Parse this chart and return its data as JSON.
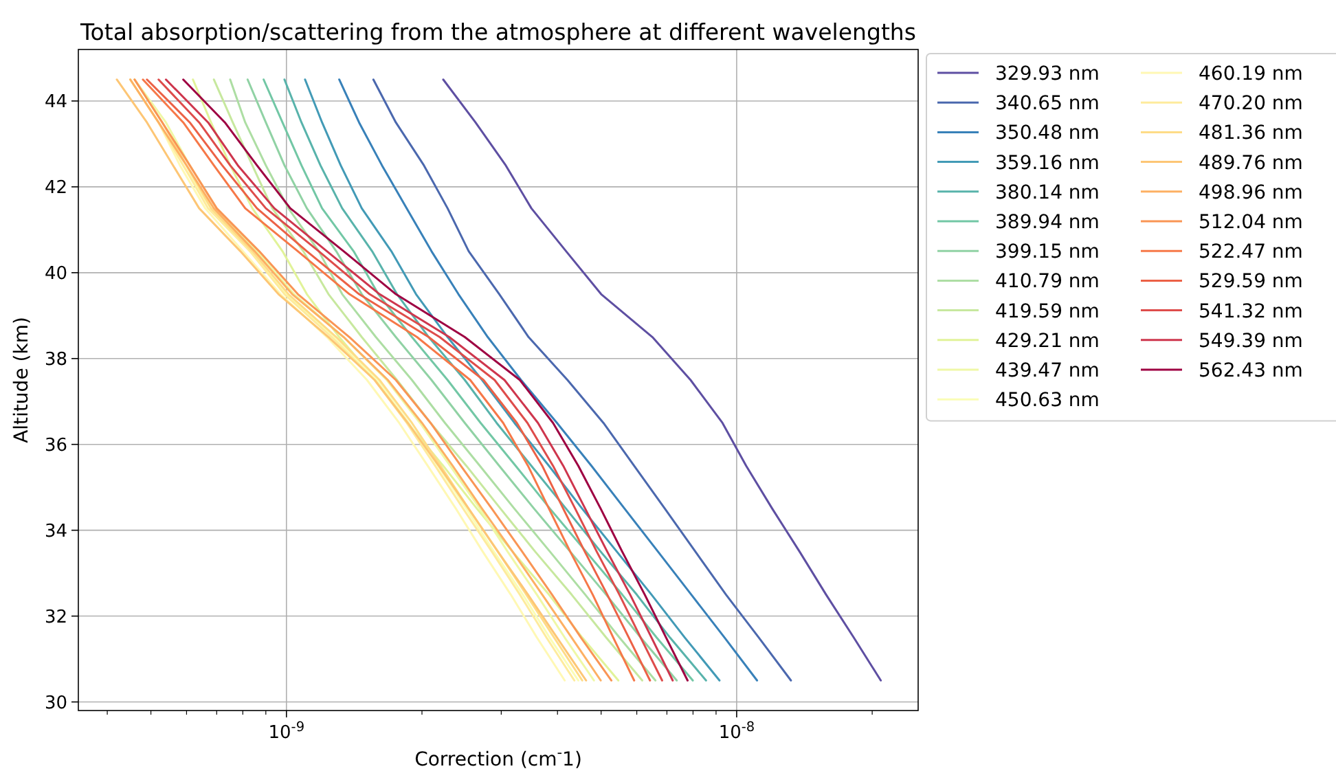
{
  "chart_data": {
    "type": "line",
    "title": "Total absorption/scattering from the atmosphere at different wavelengths",
    "xlabel": "Correction (cm$^{-}$1)",
    "ylabel": "Altitude (km)",
    "log": "x",
    "grid": true,
    "legend": "right",
    "line_style": "solid",
    "xlim": [
      3.45e-10,
      2.53e-08
    ],
    "ylim": [
      29.8,
      45.2
    ],
    "xticks": [
      {
        "value": 4e-10,
        "label": null
      },
      {
        "value": 5e-10,
        "label": null
      },
      {
        "value": 6e-10,
        "label": null
      },
      {
        "value": 7e-10,
        "label": null
      },
      {
        "value": 8e-10,
        "label": null
      },
      {
        "value": 9e-10,
        "label": null
      },
      {
        "value": 1e-09,
        "label": "10$^{-9}$"
      },
      {
        "value": 2e-09,
        "label": null
      },
      {
        "value": 3e-09,
        "label": null
      },
      {
        "value": 4e-09,
        "label": null
      },
      {
        "value": 5e-09,
        "label": null
      },
      {
        "value": 6e-09,
        "label": null
      },
      {
        "value": 7e-09,
        "label": null
      },
      {
        "value": 8e-09,
        "label": null
      },
      {
        "value": 9e-09,
        "label": null
      },
      {
        "value": 1e-08,
        "label": "10$^{-8}$"
      },
      {
        "value": 2e-08,
        "label": null
      }
    ],
    "yticks": [
      30,
      32,
      34,
      36,
      38,
      40,
      42,
      44
    ],
    "series": [
      {
        "name": "329.93 nm",
        "color": "#5e4fa2",
        "x": [
          2.23e-09,
          2.63e-09,
          3.07e-09,
          3.5e-09,
          4.18e-09,
          5e-09,
          6.5e-09,
          7.9e-09,
          9.3e-09,
          1.05e-08,
          1.2e-08,
          1.38e-08,
          1.58e-08,
          1.82e-08,
          2.09e-08
        ],
        "values": [
          44.5,
          43.5,
          42.5,
          41.5,
          40.5,
          39.5,
          38.5,
          37.5,
          36.5,
          35.5,
          34.5,
          33.5,
          32.5,
          31.5,
          30.5
        ]
      },
      {
        "name": "340.65 nm",
        "color": "#4b68ae",
        "x": [
          1.56e-09,
          1.75e-09,
          2.02e-09,
          2.28e-09,
          2.54e-09,
          2.97e-09,
          3.45e-09,
          4.21e-09,
          5.06e-09,
          5.92e-09,
          6.93e-09,
          8.1e-09,
          9.47e-09,
          1.12e-08,
          1.32e-08
        ],
        "values": [
          44.5,
          43.5,
          42.5,
          41.5,
          40.5,
          39.5,
          38.5,
          37.5,
          36.5,
          35.5,
          34.5,
          33.5,
          32.5,
          31.5,
          30.5
        ]
      },
      {
        "name": "350.48 nm",
        "color": "#3881b9",
        "x": [
          1.31e-09,
          1.45e-09,
          1.63e-09,
          1.85e-09,
          2.1e-09,
          2.41e-09,
          2.8e-09,
          3.32e-09,
          3.99e-09,
          4.76e-09,
          5.64e-09,
          6.69e-09,
          7.93e-09,
          9.4e-09,
          1.11e-08
        ],
        "values": [
          44.5,
          43.5,
          42.5,
          41.5,
          40.5,
          39.5,
          38.5,
          37.5,
          36.5,
          35.5,
          34.5,
          33.5,
          32.5,
          31.5,
          30.5
        ]
      },
      {
        "name": "359.16 nm",
        "color": "#429ab6",
        "x": [
          1.1e-09,
          1.2e-09,
          1.32e-09,
          1.47e-09,
          1.71e-09,
          1.94e-09,
          2.28e-09,
          2.72e-09,
          3.21e-09,
          3.83e-09,
          4.54e-09,
          5.42e-09,
          6.47e-09,
          7.67e-09,
          9.16e-09
        ],
        "values": [
          44.5,
          43.5,
          42.5,
          41.5,
          40.5,
          39.5,
          38.5,
          37.5,
          36.5,
          35.5,
          34.5,
          33.5,
          32.5,
          31.5,
          30.5
        ]
      },
      {
        "name": "380.14 nm",
        "color": "#58b3ab",
        "x": [
          9.9e-10,
          1.08e-09,
          1.19e-09,
          1.33e-09,
          1.55e-09,
          1.76e-09,
          2.07e-09,
          2.49e-09,
          2.93e-09,
          3.5e-09,
          4.18e-09,
          4.99e-09,
          6e-09,
          7.11e-09,
          8.55e-09
        ],
        "values": [
          44.5,
          43.5,
          42.5,
          41.5,
          40.5,
          39.5,
          38.5,
          37.5,
          36.5,
          35.5,
          34.5,
          33.5,
          32.5,
          31.5,
          30.5
        ]
      },
      {
        "name": "389.94 nm",
        "color": "#72c7a5",
        "x": [
          8.9e-10,
          9.8e-10,
          1.08e-09,
          1.2e-09,
          1.41e-09,
          1.6e-09,
          1.9e-09,
          2.28e-09,
          2.7e-09,
          3.23e-09,
          3.85e-09,
          4.63e-09,
          5.57e-09,
          6.64e-09,
          7.99e-09
        ],
        "values": [
          44.5,
          43.5,
          42.5,
          41.5,
          40.5,
          39.5,
          38.5,
          37.5,
          36.5,
          35.5,
          34.5,
          33.5,
          32.5,
          31.5,
          30.5
        ]
      },
      {
        "name": "399.15 nm",
        "color": "#90d2a4",
        "x": [
          8.2e-10,
          9e-10,
          9.9e-10,
          1.11e-09,
          1.29e-09,
          1.47e-09,
          1.75e-09,
          2.1e-09,
          2.49e-09,
          2.97e-09,
          3.55e-09,
          4.27e-09,
          5.13e-09,
          6.12e-09,
          7.36e-09
        ],
        "values": [
          44.5,
          43.5,
          42.5,
          41.5,
          40.5,
          39.5,
          38.5,
          37.5,
          36.5,
          35.5,
          34.5,
          33.5,
          32.5,
          31.5,
          30.5
        ]
      },
      {
        "name": "410.79 nm",
        "color": "#addea3",
        "x": [
          7.5e-10,
          8.1e-10,
          9e-10,
          1.01e-09,
          1.18e-09,
          1.33e-09,
          1.58e-09,
          1.9e-09,
          2.25e-09,
          2.69e-09,
          3.21e-09,
          3.85e-09,
          4.61e-09,
          5.49e-09,
          6.6e-09
        ],
        "values": [
          44.5,
          43.5,
          42.5,
          41.5,
          40.5,
          39.5,
          38.5,
          37.5,
          36.5,
          35.5,
          34.5,
          33.5,
          32.5,
          31.5,
          30.5
        ]
      },
      {
        "name": "419.59 nm",
        "color": "#c7e89e",
        "x": [
          6.9e-10,
          7.6e-10,
          8.4e-10,
          9.3e-10,
          1.09e-09,
          1.24e-09,
          1.47e-09,
          1.76e-09,
          2.09e-09,
          2.51e-09,
          2.99e-09,
          3.57e-09,
          4.3e-09,
          5.13e-09,
          6.17e-09
        ],
        "values": [
          44.5,
          43.5,
          42.5,
          41.5,
          40.5,
          39.5,
          38.5,
          37.5,
          36.5,
          35.5,
          34.5,
          33.5,
          32.5,
          31.5,
          30.5
        ]
      },
      {
        "name": "429.21 nm",
        "color": "#e1f399",
        "x": [
          6.2e-10,
          6.8e-10,
          7.5e-10,
          8.4e-10,
          9.8e-10,
          1.11e-09,
          1.31e-09,
          1.58e-09,
          1.86e-09,
          2.23e-09,
          2.65e-09,
          3.18e-09,
          3.83e-09,
          4.54e-09,
          5.46e-09
        ],
        "values": [
          44.5,
          43.5,
          42.5,
          41.5,
          40.5,
          39.5,
          38.5,
          37.5,
          36.5,
          35.5,
          34.5,
          33.5,
          32.5,
          31.5,
          30.5
        ]
      },
      {
        "name": "439.47 nm",
        "color": "#eff8a6",
        "x": [
          4.6e-10,
          5.4e-10,
          6.1e-10,
          7e-10,
          8.6e-10,
          1.04e-09,
          1.34e-09,
          1.67e-09,
          1.98e-09,
          2.31e-09,
          2.69e-09,
          3.1e-09,
          3.6e-09,
          4.15e-09,
          4.82e-09
        ],
        "values": [
          44.5,
          43.5,
          42.5,
          41.5,
          40.5,
          39.5,
          38.5,
          37.5,
          36.5,
          35.5,
          34.5,
          33.5,
          32.5,
          31.5,
          30.5
        ]
      },
      {
        "name": "450.63 nm",
        "color": "#fafdb6",
        "x": [
          4.5e-10,
          5.2e-10,
          5.9e-10,
          6.8e-10,
          8.3e-10,
          1e-09,
          1.27e-09,
          1.59e-09,
          1.87e-09,
          2.17e-09,
          2.51e-09,
          2.89e-09,
          3.35e-09,
          3.84e-09,
          4.45e-09
        ],
        "values": [
          44.5,
          43.5,
          42.5,
          41.5,
          40.5,
          39.5,
          38.5,
          37.5,
          36.5,
          35.5,
          34.5,
          33.5,
          32.5,
          31.5,
          30.5
        ]
      },
      {
        "name": "460.19 nm",
        "color": "#fff8b4",
        "x": [
          4.5e-10,
          5.2e-10,
          5.8e-10,
          6.6e-10,
          8e-10,
          9.7e-10,
          1.23e-09,
          1.51e-09,
          1.78e-09,
          2.06e-09,
          2.38e-09,
          2.73e-09,
          3.15e-09,
          3.6e-09,
          4.15e-09
        ],
        "values": [
          44.5,
          43.5,
          42.5,
          41.5,
          40.5,
          39.5,
          38.5,
          37.5,
          36.5,
          35.5,
          34.5,
          33.5,
          32.5,
          31.5,
          30.5
        ]
      },
      {
        "name": "470.20 nm",
        "color": "#feeb9d",
        "x": [
          4.5e-10,
          5.2e-10,
          5.9e-10,
          6.7e-10,
          8.3e-10,
          9.9e-10,
          1.26e-09,
          1.57e-09,
          1.85e-09,
          2.14e-09,
          2.47e-09,
          2.86e-09,
          3.3e-09,
          3.78e-09,
          4.36e-09
        ],
        "values": [
          44.5,
          43.5,
          42.5,
          41.5,
          40.5,
          39.5,
          38.5,
          37.5,
          36.5,
          35.5,
          34.5,
          33.5,
          32.5,
          31.5,
          30.5
        ]
      },
      {
        "name": "481.36 nm",
        "color": "#fedc87",
        "x": [
          4.6e-10,
          5.3e-10,
          6e-10,
          6.8e-10,
          8.4e-10,
          1.01e-09,
          1.29e-09,
          1.61e-09,
          1.9e-09,
          2.2e-09,
          2.54e-09,
          2.95e-09,
          3.41e-09,
          3.93e-09,
          4.54e-09
        ],
        "values": [
          44.5,
          43.5,
          42.5,
          41.5,
          40.5,
          39.5,
          38.5,
          37.5,
          36.5,
          35.5,
          34.5,
          33.5,
          32.5,
          31.5,
          30.5
        ]
      },
      {
        "name": "489.76 nm",
        "color": "#fdc675",
        "x": [
          4.2e-10,
          4.9e-10,
          5.6e-10,
          6.4e-10,
          7.9e-10,
          9.6e-10,
          1.24e-09,
          1.57e-09,
          1.86e-09,
          2.18e-09,
          2.54e-09,
          2.95e-09,
          3.44e-09,
          3.99e-09,
          4.63e-09
        ],
        "values": [
          44.5,
          43.5,
          42.5,
          41.5,
          40.5,
          39.5,
          38.5,
          37.5,
          36.5,
          35.5,
          34.5,
          33.5,
          32.5,
          31.5,
          30.5
        ]
      },
      {
        "name": "498.96 nm",
        "color": "#fdb063",
        "x": [
          4.5e-10,
          5.2e-10,
          6e-10,
          6.9e-10,
          8.5e-10,
          1.03e-09,
          1.34e-09,
          1.68e-09,
          2e-09,
          2.34e-09,
          2.72e-09,
          3.18e-09,
          3.7e-09,
          4.3e-09,
          4.99e-09
        ],
        "values": [
          44.5,
          43.5,
          42.5,
          41.5,
          40.5,
          39.5,
          38.5,
          37.5,
          36.5,
          35.5,
          34.5,
          33.5,
          32.5,
          31.5,
          30.5
        ]
      },
      {
        "name": "512.04 nm",
        "color": "#f99555",
        "x": [
          4.6e-10,
          5.3e-10,
          6.1e-10,
          7e-10,
          8.7e-10,
          1.06e-09,
          1.38e-09,
          1.75e-09,
          2.09e-09,
          2.44e-09,
          2.86e-09,
          3.34e-09,
          3.89e-09,
          4.51e-09,
          5.27e-09
        ],
        "values": [
          44.5,
          43.5,
          42.5,
          41.5,
          40.5,
          39.5,
          38.5,
          37.5,
          36.5,
          35.5,
          34.5,
          33.5,
          32.5,
          31.5,
          30.5
        ]
      },
      {
        "name": "522.47 nm",
        "color": "#f67848",
        "x": [
          4.8e-10,
          5.9e-10,
          6.9e-10,
          8.1e-10,
          1.06e-09,
          1.38e-09,
          1.95e-09,
          2.56e-09,
          3.03e-09,
          3.44e-09,
          3.83e-09,
          4.27e-09,
          4.79e-09,
          5.32e-09,
          5.92e-09
        ],
        "values": [
          44.5,
          43.5,
          42.5,
          41.5,
          40.5,
          39.5,
          38.5,
          37.5,
          36.5,
          35.5,
          34.5,
          33.5,
          32.5,
          31.5,
          30.5
        ]
      },
      {
        "name": "529.59 nm",
        "color": "#ec6146",
        "x": [
          4.9e-10,
          6.1e-10,
          7.2e-10,
          8.6e-10,
          1.11e-09,
          1.45e-09,
          2.07e-09,
          2.74e-09,
          3.25e-09,
          3.7e-09,
          4.12e-09,
          4.6e-09,
          5.16e-09,
          5.76e-09,
          6.42e-09
        ],
        "values": [
          44.5,
          43.5,
          42.5,
          41.5,
          40.5,
          39.5,
          38.5,
          37.5,
          36.5,
          35.5,
          34.5,
          33.5,
          32.5,
          31.5,
          30.5
        ]
      },
      {
        "name": "541.32 nm",
        "color": "#de4c4b",
        "x": [
          5.2e-10,
          6.4e-10,
          7.5e-10,
          9e-10,
          1.18e-09,
          1.53e-09,
          2.19e-09,
          2.9e-09,
          3.43e-09,
          3.91e-09,
          4.38e-09,
          4.89e-09,
          5.49e-09,
          6.12e-09,
          6.83e-09
        ],
        "values": [
          44.5,
          43.5,
          42.5,
          41.5,
          40.5,
          39.5,
          38.5,
          37.5,
          36.5,
          35.5,
          34.5,
          33.5,
          32.5,
          31.5,
          30.5
        ]
      },
      {
        "name": "549.39 nm",
        "color": "#ce364d",
        "x": [
          5.4e-10,
          6.7e-10,
          7.8e-10,
          9.4e-10,
          1.23e-09,
          1.61e-09,
          2.3e-09,
          3.05e-09,
          3.62e-09,
          4.12e-09,
          4.61e-09,
          5.16e-09,
          5.8e-09,
          6.47e-09,
          7.21e-09
        ],
        "values": [
          44.5,
          43.5,
          42.5,
          41.5,
          40.5,
          39.5,
          38.5,
          37.5,
          36.5,
          35.5,
          34.5,
          33.5,
          32.5,
          31.5,
          30.5
        ]
      },
      {
        "name": "562.43 nm",
        "color": "#9e0142",
        "x": [
          5.9e-10,
          7.3e-10,
          8.6e-10,
          1.02e-09,
          1.34e-09,
          1.75e-09,
          2.49e-09,
          3.3e-09,
          3.91e-09,
          4.45e-09,
          4.99e-09,
          5.57e-09,
          6.25e-09,
          6.97e-09,
          7.78e-09
        ],
        "values": [
          44.5,
          43.5,
          42.5,
          41.5,
          40.5,
          39.5,
          38.5,
          37.5,
          36.5,
          35.5,
          34.5,
          33.5,
          32.5,
          31.5,
          30.5
        ]
      }
    ]
  }
}
